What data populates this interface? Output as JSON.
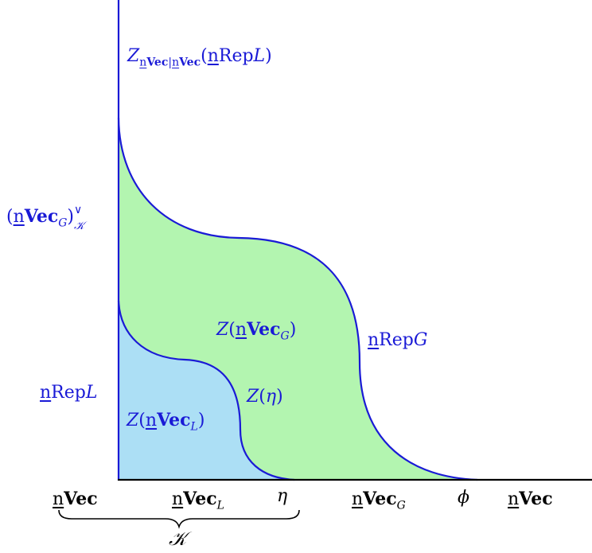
{
  "colors": {
    "stroke": "#1a1ad6",
    "fill_outer": "#b3f5b0",
    "fill_inner": "#acdff5",
    "text_axis": "#000000"
  },
  "labels": {
    "top_prefix": "Z",
    "top_sub_n1": "n",
    "top_sub_vec1": "Vec",
    "top_sub_bar": "|",
    "top_sub_n2": "n",
    "top_sub_vec2": "Vec",
    "top_open": "(",
    "top_n": "n",
    "top_rep": "Rep",
    "top_L": "L",
    "top_close": ")",
    "dual_open": "(",
    "dual_n": "n",
    "dual_vec": "Vec",
    "dual_sub_G": "G",
    "dual_close": ")",
    "dual_sup": "∨",
    "dual_sub_K": "𝒦",
    "repL_n": "n",
    "repL_rep": "Rep",
    "repL_L": "L",
    "repG_n": "n",
    "repG_rep": "Rep",
    "repG_G": "G",
    "zG_Z": "Z",
    "zG_open": "(",
    "zG_n": "n",
    "zG_vec": "Vec",
    "zG_sub": "G",
    "zG_close": ")",
    "zL_Z": "Z",
    "zL_open": "(",
    "zL_n": "n",
    "zL_vec": "Vec",
    "zL_sub": "L",
    "zL_close": ")",
    "zeta_Z": "Z",
    "zeta_open": "(",
    "zeta_eta": "η",
    "zeta_close": ")"
  },
  "axis": {
    "nvec1_n": "n",
    "nvec1_vec": "Vec",
    "nvecL_n": "n",
    "nvecL_vec": "Vec",
    "nvecL_sub": "L",
    "eta": "η",
    "nvecG_n": "n",
    "nvecG_vec": "Vec",
    "nvecG_sub": "G",
    "phi": "ϕ",
    "nvec2_n": "n",
    "nvec2_vec": "Vec",
    "brace_label": "𝒦"
  }
}
